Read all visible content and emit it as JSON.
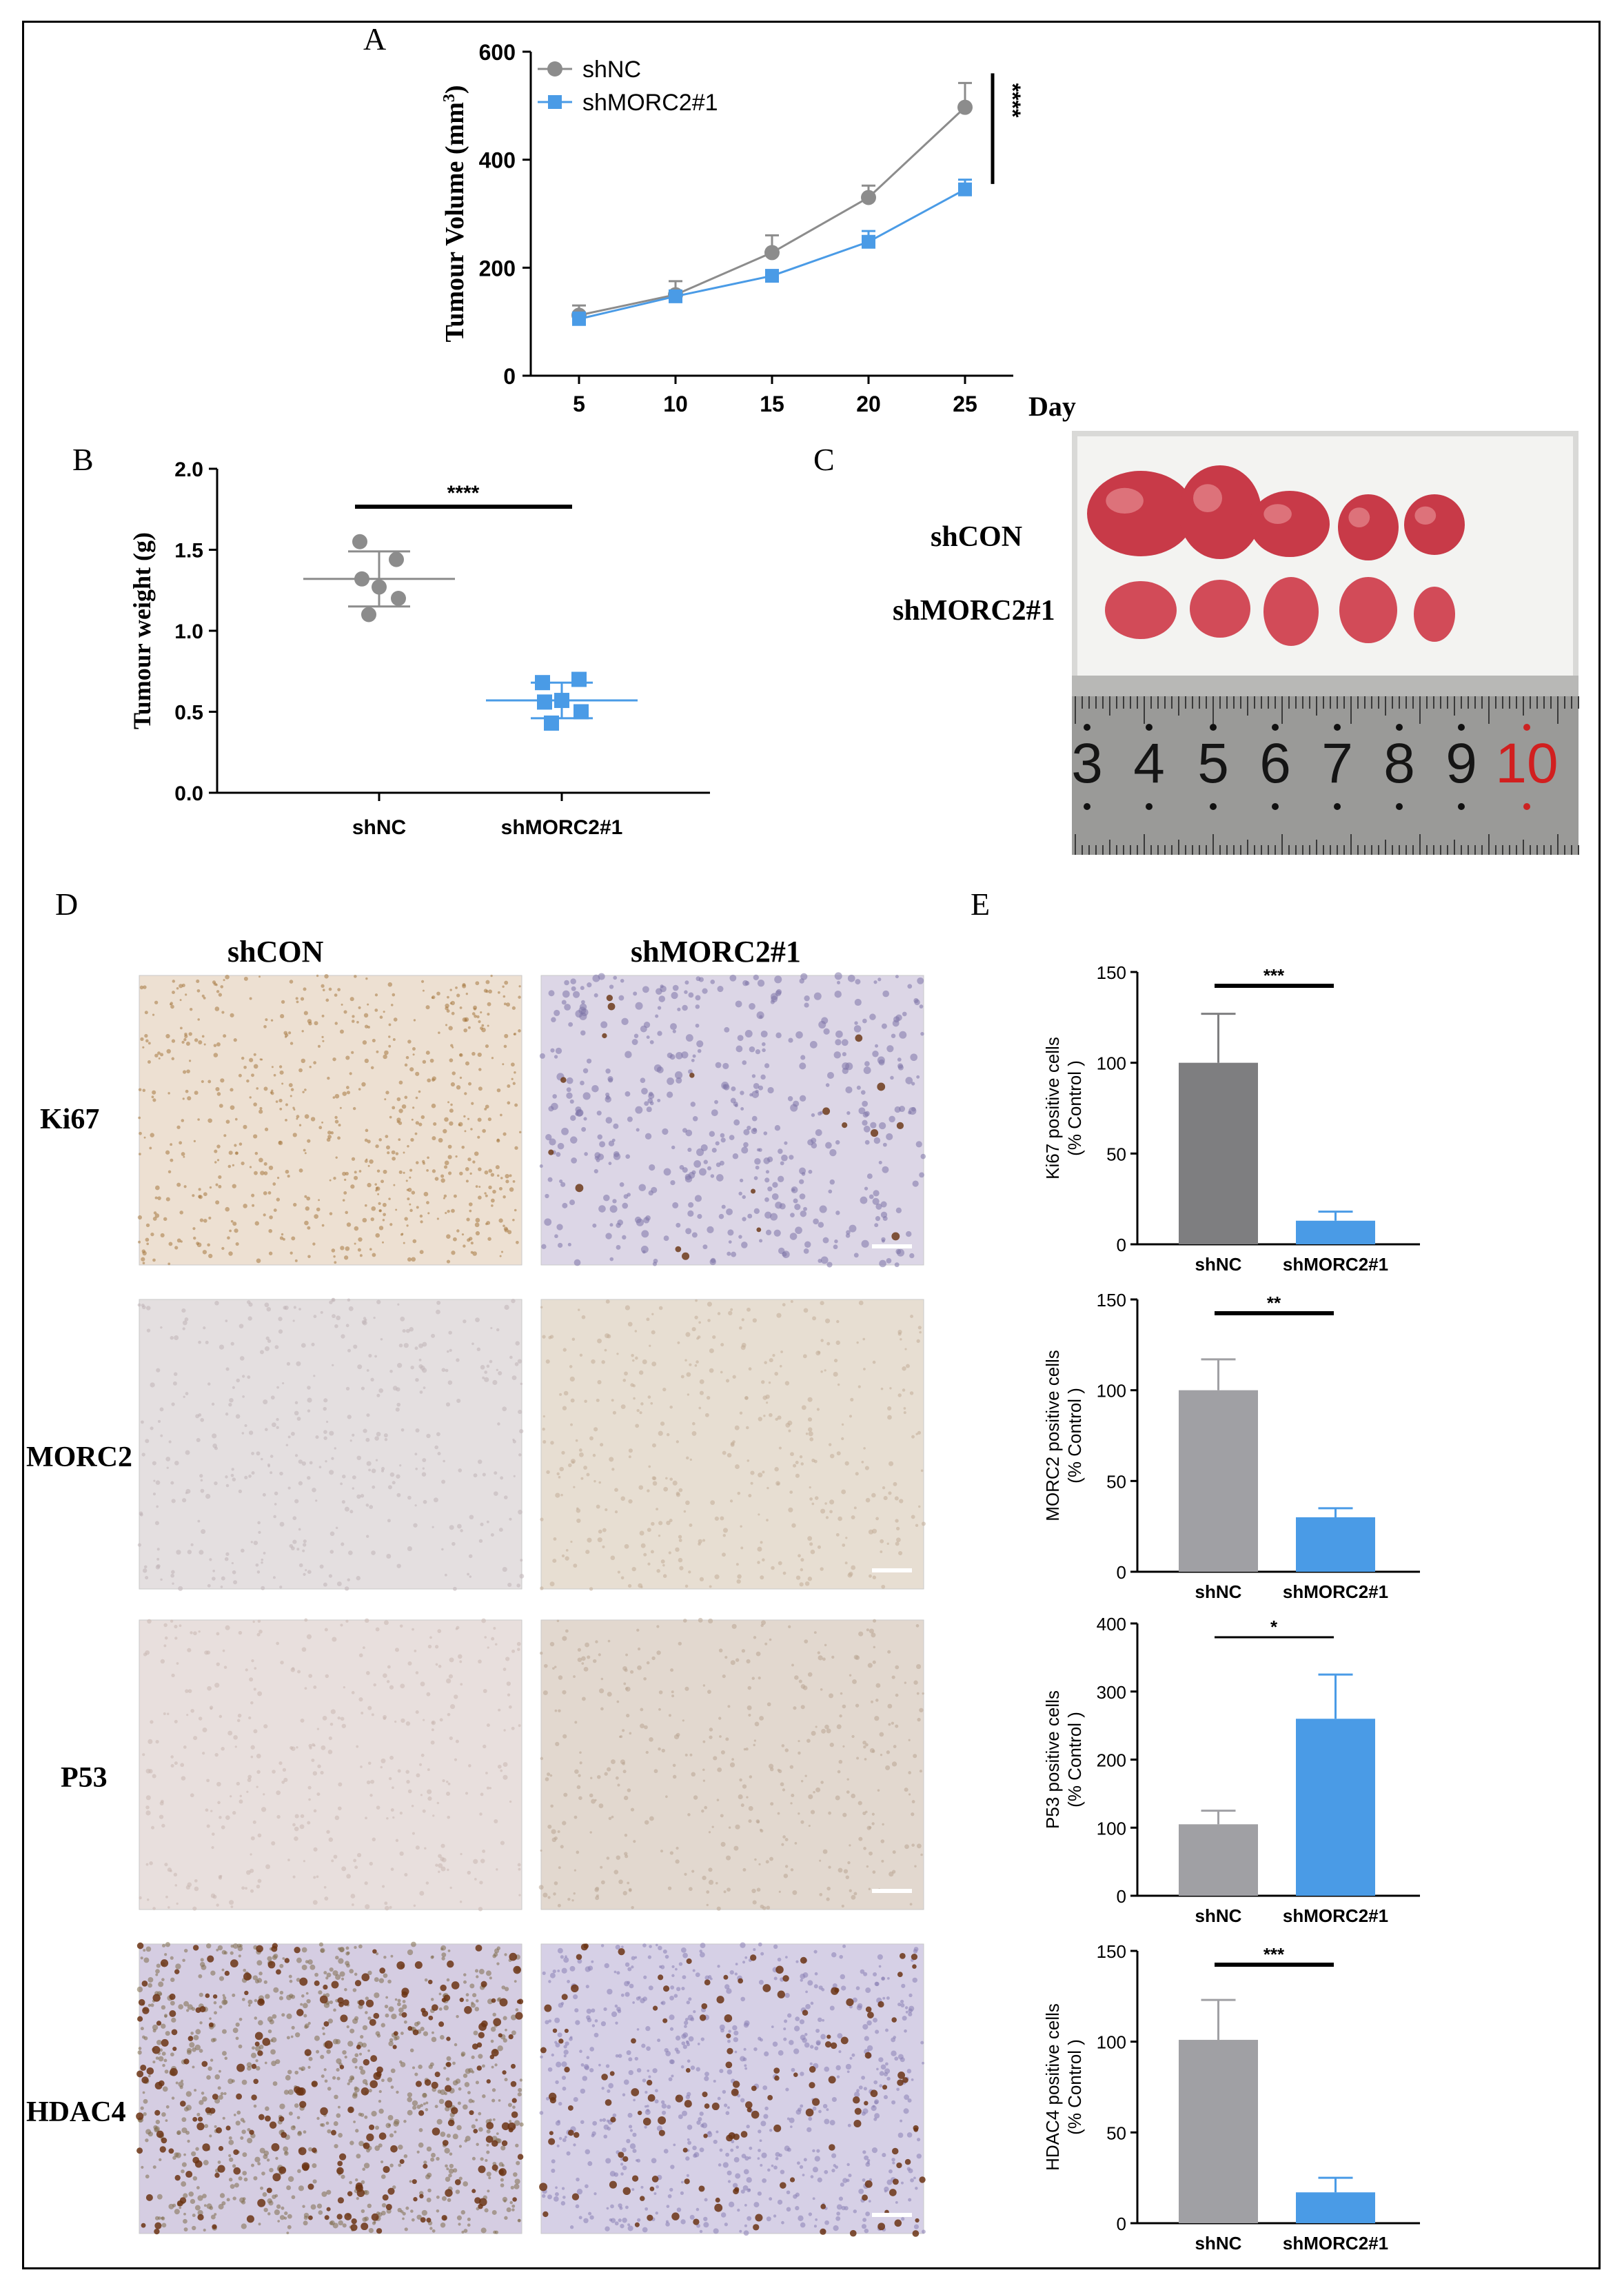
{
  "panels": {
    "A": "A",
    "B": "B",
    "C": "C",
    "D": "D",
    "E": "E"
  },
  "colors": {
    "gray": "#8c8c8c",
    "blue": "#4a9be6",
    "grayBar": "#a0a0a4",
    "darkBar": "#7e7e80"
  },
  "panel_c": {
    "label_top": "shCON",
    "label_bottom": "shMORC2#1",
    "ruler_numbers": [
      "3",
      "4",
      "5",
      "6",
      "7",
      "8",
      "9",
      "10"
    ]
  },
  "panel_d": {
    "col_left": "shCON",
    "col_right": "shMORC2#1",
    "rows": [
      "Ki67",
      "MORC2",
      "P53",
      "HDAC4"
    ]
  },
  "chart_data": [
    {
      "id": "A",
      "type": "line",
      "xlabel": "Day",
      "ylabel": "Tumour Volume (mm3)",
      "ylabel_main": "Tumour Volume (mm",
      "ylabel_sup": "3",
      "ylabel_close": ")",
      "x": [
        5,
        10,
        15,
        20,
        25
      ],
      "xticks": [
        "5",
        "10",
        "15",
        "20",
        "25"
      ],
      "yticks": [
        "0",
        "200",
        "400",
        "600"
      ],
      "ylim": [
        0,
        600
      ],
      "significance": "****",
      "series": [
        {
          "name": "shNC",
          "values": [
            112,
            150,
            228,
            330,
            497
          ],
          "errors": [
            18,
            25,
            32,
            22,
            45
          ],
          "marker": "circle"
        },
        {
          "name": "shMORC2#1",
          "values": [
            105,
            147,
            185,
            248,
            345
          ],
          "errors": [
            12,
            8,
            10,
            20,
            18
          ],
          "marker": "square"
        }
      ]
    },
    {
      "id": "B",
      "type": "scatter",
      "ylabel": "Tumour weight (g)",
      "categories": [
        "shNC",
        "shMORC2#1"
      ],
      "yticks": [
        "0.0",
        "0.5",
        "1.0",
        "1.5",
        "2.0"
      ],
      "ylim": [
        0,
        2.0
      ],
      "significance": "****",
      "series": [
        {
          "name": "shNC",
          "values": [
            1.55,
            1.44,
            1.27,
            1.32,
            1.2,
            1.1
          ],
          "mean": 1.32,
          "sd": 0.17
        },
        {
          "name": "shMORC2#1",
          "values": [
            0.68,
            0.7,
            0.57,
            0.56,
            0.5,
            0.43
          ],
          "mean": 0.57,
          "sd": 0.11
        }
      ]
    },
    {
      "id": "E1",
      "type": "bar",
      "ylabel_line1": "Ki67 positive cells",
      "ylabel_line2": "(% Control )",
      "categories": [
        "shNC",
        "shMORC2#1"
      ],
      "values": [
        100,
        13
      ],
      "errors": [
        27,
        5
      ],
      "yticks": [
        "0",
        "50",
        "100",
        "150"
      ],
      "ylim": [
        0,
        150
      ],
      "significance": "***"
    },
    {
      "id": "E2",
      "type": "bar",
      "ylabel_line1": "MORC2 positive cells",
      "ylabel_line2": "(% Control )",
      "categories": [
        "shNC",
        "shMORC2#1"
      ],
      "values": [
        100,
        30
      ],
      "errors": [
        17,
        5
      ],
      "yticks": [
        "0",
        "50",
        "100",
        "150"
      ],
      "ylim": [
        0,
        150
      ],
      "significance": "**"
    },
    {
      "id": "E3",
      "type": "bar",
      "ylabel_line1": "P53 positive cells",
      "ylabel_line2": "(% Control )",
      "categories": [
        "shNC",
        "shMORC2#1"
      ],
      "values": [
        105,
        260
      ],
      "errors": [
        20,
        65
      ],
      "yticks": [
        "0",
        "100",
        "200",
        "300",
        "400"
      ],
      "ylim": [
        0,
        400
      ],
      "significance": "*"
    },
    {
      "id": "E4",
      "type": "bar",
      "ylabel_line1": "HDAC4 positive cells",
      "ylabel_line2": "(% Control )",
      "categories": [
        "shNC",
        "shMORC2#1"
      ],
      "values": [
        101,
        17
      ],
      "errors": [
        22,
        8
      ],
      "yticks": [
        "0",
        "50",
        "100",
        "150"
      ],
      "ylim": [
        0,
        150
      ],
      "significance": "***"
    }
  ]
}
